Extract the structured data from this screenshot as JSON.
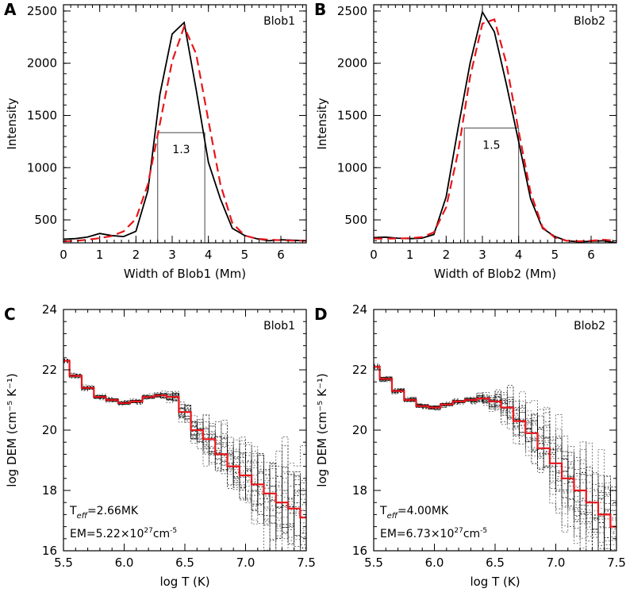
{
  "figure": {
    "colors": {
      "observed": "#000000",
      "fit": "#e8161b",
      "mc": "#000000",
      "dem_best": "#e8161b"
    }
  },
  "chart_data": [
    {
      "id": "A",
      "letter": "A",
      "type": "line",
      "title": "Blob1",
      "xlabel": "Width of Blob1 (Mm)",
      "ylabel": "Intensity",
      "xlim": [
        0,
        6.7
      ],
      "ylim": [
        280,
        2560
      ],
      "xticks": [
        0,
        1,
        2,
        3,
        4,
        5,
        6
      ],
      "yticks": [
        500,
        1000,
        1500,
        2000,
        2500
      ],
      "series": [
        {
          "name": "observed",
          "style": "solid",
          "x": [
            0,
            0.33,
            0.66,
            1.0,
            1.33,
            1.66,
            2.0,
            2.33,
            2.66,
            3.0,
            3.33,
            3.66,
            4.0,
            4.33,
            4.66,
            5.0,
            5.33,
            5.66,
            6.0,
            6.33,
            6.7
          ],
          "y": [
            315,
            320,
            335,
            370,
            350,
            340,
            390,
            780,
            1700,
            2280,
            2390,
            1750,
            1050,
            700,
            420,
            350,
            320,
            300,
            310,
            305,
            300
          ]
        },
        {
          "name": "fit",
          "style": "dashed",
          "x": [
            0,
            0.33,
            0.66,
            1.0,
            1.33,
            1.66,
            2.0,
            2.33,
            2.66,
            3.0,
            3.33,
            3.66,
            4.0,
            4.33,
            4.66,
            5.0,
            5.33,
            5.66,
            6.0,
            6.33,
            6.7
          ],
          "y": [
            295,
            300,
            310,
            325,
            345,
            390,
            510,
            840,
            1420,
            2020,
            2350,
            2090,
            1450,
            840,
            470,
            350,
            320,
            310,
            305,
            302,
            300
          ]
        }
      ],
      "fwhm": {
        "label": "1.3",
        "x_left": 2.6,
        "x_right": 3.9,
        "y": 1335
      }
    },
    {
      "id": "B",
      "letter": "B",
      "type": "line",
      "title": "Blob2",
      "xlabel": "Width of Blob2 (Mm)",
      "ylabel": "Intensity",
      "xlim": [
        0,
        6.7
      ],
      "ylim": [
        280,
        2560
      ],
      "xticks": [
        0,
        1,
        2,
        3,
        4,
        5,
        6
      ],
      "yticks": [
        500,
        1000,
        1500,
        2000,
        2500
      ],
      "series": [
        {
          "name": "observed",
          "style": "solid",
          "x": [
            0,
            0.33,
            0.66,
            1.0,
            1.33,
            1.66,
            2.0,
            2.33,
            2.66,
            3.0,
            3.33,
            3.66,
            4.0,
            4.33,
            4.66,
            5.0,
            5.33,
            5.66,
            6.0,
            6.33,
            6.7
          ],
          "y": [
            330,
            335,
            325,
            320,
            325,
            360,
            720,
            1380,
            2000,
            2490,
            2300,
            1800,
            1250,
            700,
            420,
            340,
            300,
            290,
            295,
            300,
            280
          ]
        },
        {
          "name": "fit",
          "style": "dashed",
          "x": [
            0,
            0.33,
            0.66,
            1.0,
            1.33,
            1.66,
            2.0,
            2.33,
            2.66,
            3.0,
            3.33,
            3.66,
            4.0,
            4.33,
            4.66,
            5.0,
            5.33,
            5.66,
            6.0,
            6.33,
            6.7
          ],
          "y": [
            320,
            320,
            322,
            325,
            335,
            380,
            620,
            1150,
            1870,
            2380,
            2420,
            2000,
            1350,
            760,
            430,
            330,
            300,
            295,
            300,
            310,
            300
          ]
        }
      ],
      "fwhm": {
        "label": "1.5",
        "x_left": 2.5,
        "x_right": 4.0,
        "y": 1380
      }
    },
    {
      "id": "C",
      "letter": "C",
      "type": "line",
      "title": "Blob1",
      "xlabel": "log T (K)",
      "ylabel": "log DEM (cm⁻⁵ K⁻¹)",
      "xlim": [
        5.5,
        7.5
      ],
      "ylim": [
        16,
        24
      ],
      "xticks": [
        5.5,
        6.0,
        6.5,
        7.0,
        7.5
      ],
      "xtick_labels": [
        "5.5",
        "6.0",
        "6.5",
        "7.0",
        "7.5"
      ],
      "yticks": [
        16,
        18,
        20,
        22,
        24
      ],
      "bin_edges": [
        5.5,
        5.55,
        5.6,
        5.65,
        5.7,
        5.75,
        5.8,
        5.85,
        5.9,
        5.95,
        6.0,
        6.05,
        6.1,
        6.15,
        6.2,
        6.25,
        6.3,
        6.35,
        6.4,
        6.45,
        6.5,
        6.55,
        6.6,
        6.65,
        6.7,
        6.75,
        6.8,
        6.85,
        6.9,
        6.95,
        7.0,
        7.05,
        7.1,
        7.15,
        7.2,
        7.25,
        7.3,
        7.35,
        7.4,
        7.45,
        7.5
      ],
      "dem_best": [
        22.3,
        21.8,
        21.8,
        21.4,
        21.4,
        21.1,
        21.1,
        21.0,
        21.0,
        20.9,
        20.9,
        20.95,
        20.95,
        21.1,
        21.1,
        21.15,
        21.15,
        21.1,
        21.1,
        20.6,
        20.6,
        20.0,
        20.0,
        19.7,
        19.7,
        19.2,
        19.2,
        18.8,
        18.8,
        18.5,
        18.5,
        18.2,
        18.2,
        17.9,
        17.9,
        17.6,
        17.6,
        17.4,
        17.4,
        17.1
      ],
      "mc_spread": [
        0.1,
        0.1,
        0.1,
        0.1,
        0.1,
        0.1,
        0.1,
        0.1,
        0.1,
        0.1,
        0.1,
        0.1,
        0.1,
        0.1,
        0.1,
        0.1,
        0.15,
        0.2,
        0.25,
        0.35,
        0.45,
        0.6,
        0.75,
        0.9,
        1.0,
        1.1,
        1.2,
        1.3,
        1.45,
        1.6,
        1.7,
        1.8,
        1.9,
        2.0,
        2.1,
        2.2,
        2.3,
        2.3,
        2.4,
        2.4
      ],
      "annotations": {
        "teff_sym": "T",
        "teff_sub": "eff",
        "teff_val": "=2.66MK",
        "em_pre": "EM=5.22×10",
        "em_exp": "27",
        "em_unit": "cm",
        "em_unit_exp": "-5"
      }
    },
    {
      "id": "D",
      "letter": "D",
      "type": "line",
      "title": "Blob2",
      "xlabel": "log T (K)",
      "ylabel": "log DEM (cm⁻⁵ K⁻¹)",
      "xlim": [
        5.5,
        7.5
      ],
      "ylim": [
        16,
        24
      ],
      "xticks": [
        5.5,
        6.0,
        6.5,
        7.0,
        7.5
      ],
      "xtick_labels": [
        "5.5",
        "6.0",
        "6.5",
        "7.0",
        "7.5"
      ],
      "yticks": [
        16,
        18,
        20,
        22,
        24
      ],
      "bin_edges": [
        5.5,
        5.55,
        5.6,
        5.65,
        5.7,
        5.75,
        5.8,
        5.85,
        5.9,
        5.95,
        6.0,
        6.05,
        6.1,
        6.15,
        6.2,
        6.25,
        6.3,
        6.35,
        6.4,
        6.45,
        6.5,
        6.55,
        6.6,
        6.65,
        6.7,
        6.75,
        6.8,
        6.85,
        6.9,
        6.95,
        7.0,
        7.05,
        7.1,
        7.15,
        7.2,
        7.25,
        7.3,
        7.35,
        7.4,
        7.45,
        7.5
      ],
      "dem_best": [
        22.1,
        21.7,
        21.7,
        21.3,
        21.3,
        21.0,
        21.0,
        20.8,
        20.8,
        20.75,
        20.75,
        20.85,
        20.85,
        20.95,
        20.95,
        21.0,
        21.0,
        21.05,
        21.05,
        20.95,
        20.95,
        20.75,
        20.75,
        20.3,
        20.3,
        19.9,
        19.9,
        19.4,
        19.4,
        18.9,
        18.9,
        18.4,
        18.4,
        18.0,
        18.0,
        17.6,
        17.6,
        17.2,
        17.2,
        16.8
      ],
      "mc_spread": [
        0.1,
        0.1,
        0.1,
        0.1,
        0.1,
        0.1,
        0.1,
        0.1,
        0.1,
        0.1,
        0.1,
        0.1,
        0.1,
        0.1,
        0.1,
        0.1,
        0.15,
        0.2,
        0.25,
        0.35,
        0.45,
        0.6,
        0.75,
        0.9,
        1.0,
        1.1,
        1.2,
        1.3,
        1.45,
        1.6,
        1.7,
        1.8,
        1.9,
        2.0,
        2.1,
        2.2,
        2.3,
        2.3,
        2.4,
        2.4
      ],
      "annotations": {
        "teff_sym": "T",
        "teff_sub": "eff",
        "teff_val": "=4.00MK",
        "em_pre": "EM=6.73×10",
        "em_exp": "27",
        "em_unit": "cm",
        "em_unit_exp": "-5"
      }
    }
  ]
}
